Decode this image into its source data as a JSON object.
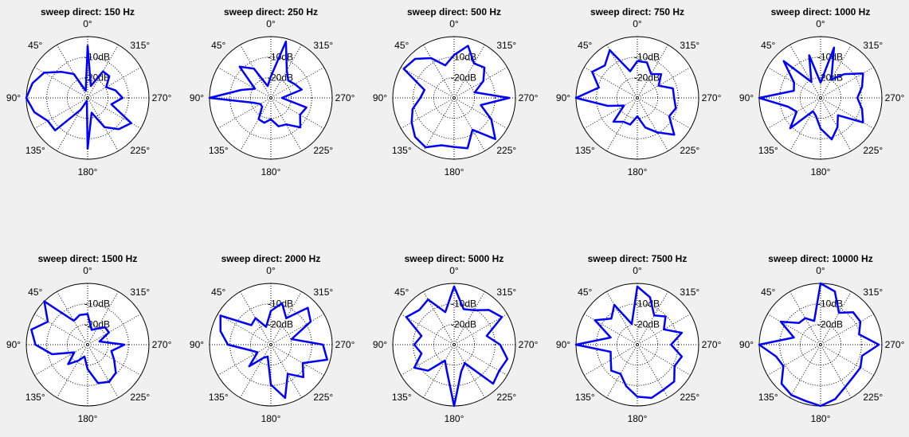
{
  "chart_data": [
    {
      "type": "polar",
      "title": "sweep direct: 150 Hz",
      "angle_ticks": [
        "0°",
        "45°",
        "90°",
        "135°",
        "180°",
        "225°",
        "270°",
        "315°"
      ],
      "ring_labels": [
        "-10dB",
        "-20dB"
      ],
      "theta_deg": [
        0,
        15,
        30,
        45,
        60,
        75,
        90,
        105,
        120,
        135,
        150,
        165,
        180,
        195,
        210,
        225,
        240,
        255,
        270,
        285,
        300,
        315,
        330,
        345
      ],
      "r": [
        0.85,
        0.12,
        0.45,
        0.6,
        0.82,
        0.93,
        1.0,
        0.9,
        0.75,
        0.75,
        0.22,
        0.05,
        0.83,
        0.25,
        0.55,
        0.72,
        0.82,
        0.4,
        0.57,
        0.47,
        0.35,
        0.5,
        0.5,
        0.2
      ]
    },
    {
      "type": "polar",
      "title": "sweep direct: 250 Hz",
      "angle_ticks": [
        "0°",
        "45°",
        "90°",
        "135°",
        "180°",
        "225°",
        "270°",
        "315°"
      ],
      "ring_labels": [
        "-10dB",
        "-20dB"
      ],
      "theta_deg": [
        0,
        15,
        30,
        45,
        60,
        75,
        90,
        105,
        120,
        135,
        150,
        165,
        180,
        195,
        210,
        225,
        240,
        255,
        270,
        285,
        300,
        315,
        330,
        345
      ],
      "r": [
        0.35,
        0.2,
        0.55,
        0.72,
        0.3,
        0.5,
        1.0,
        0.3,
        0.2,
        0.2,
        0.4,
        0.42,
        0.35,
        0.48,
        0.5,
        0.68,
        0.55,
        0.6,
        0.18,
        0.52,
        0.45,
        0.4,
        0.52,
        0.95
      ]
    },
    {
      "type": "polar",
      "title": "sweep direct: 500 Hz",
      "angle_ticks": [
        "0°",
        "45°",
        "90°",
        "135°",
        "180°",
        "225°",
        "270°",
        "315°"
      ],
      "ring_labels": [
        "-10dB",
        "-20dB"
      ],
      "theta_deg": [
        0,
        15,
        30,
        45,
        60,
        75,
        90,
        105,
        120,
        135,
        150,
        165,
        180,
        195,
        210,
        225,
        240,
        255,
        270,
        285,
        300,
        315,
        330,
        345
      ],
      "r": [
        0.7,
        0.55,
        0.75,
        0.9,
        0.95,
        0.5,
        0.55,
        0.7,
        0.8,
        0.9,
        0.93,
        0.8,
        0.8,
        0.85,
        0.6,
        0.95,
        0.7,
        0.45,
        0.9,
        0.35,
        0.55,
        0.7,
        0.65,
        0.88
      ]
    },
    {
      "type": "polar",
      "title": "sweep direct: 750 Hz",
      "angle_ticks": [
        "0°",
        "45°",
        "90°",
        "135°",
        "180°",
        "225°",
        "270°",
        "315°"
      ],
      "ring_labels": [
        "-10dB",
        "-20dB"
      ],
      "theta_deg": [
        0,
        15,
        30,
        45,
        60,
        75,
        90,
        105,
        120,
        135,
        150,
        165,
        180,
        195,
        210,
        225,
        240,
        255,
        270,
        285,
        300,
        315,
        330,
        345
      ],
      "r": [
        0.6,
        0.45,
        0.9,
        0.75,
        0.85,
        0.65,
        1.0,
        0.5,
        0.25,
        0.55,
        0.45,
        0.45,
        0.3,
        0.5,
        0.65,
        0.85,
        0.6,
        0.65,
        0.6,
        0.6,
        0.4,
        0.55,
        0.45,
        0.6
      ]
    },
    {
      "type": "polar",
      "title": "sweep direct: 1000 Hz",
      "angle_ticks": [
        "0°",
        "45°",
        "90°",
        "135°",
        "180°",
        "225°",
        "270°",
        "315°"
      ],
      "ring_labels": [
        "-10dB",
        "-20dB"
      ],
      "theta_deg": [
        0,
        15,
        30,
        45,
        60,
        75,
        90,
        105,
        120,
        135,
        150,
        165,
        180,
        195,
        210,
        225,
        240,
        255,
        270,
        285,
        300,
        315,
        330,
        345
      ],
      "r": [
        0.25,
        0.72,
        0.3,
        0.85,
        0.5,
        0.45,
        1.0,
        0.55,
        0.45,
        0.7,
        0.25,
        0.3,
        0.5,
        0.7,
        0.55,
        0.4,
        0.8,
        0.7,
        0.6,
        0.7,
        0.8,
        0.55,
        0.35,
        0.85
      ]
    },
    {
      "type": "polar",
      "title": "sweep direct: 1500 Hz",
      "angle_ticks": [
        "0°",
        "45°",
        "90°",
        "135°",
        "180°",
        "225°",
        "270°",
        "315°"
      ],
      "ring_labels": [
        "-10dB",
        "-20dB"
      ],
      "theta_deg": [
        0,
        15,
        30,
        45,
        60,
        75,
        90,
        105,
        120,
        135,
        150,
        165,
        180,
        195,
        210,
        225,
        240,
        255,
        270,
        285,
        300,
        315,
        330,
        345
      ],
      "r": [
        0.5,
        0.5,
        0.45,
        1.0,
        0.75,
        0.95,
        0.85,
        0.6,
        0.25,
        0.45,
        0.3,
        0.2,
        0.4,
        0.65,
        0.7,
        0.65,
        0.5,
        0.4,
        0.6,
        0.2,
        0.4,
        0.4,
        0.3,
        0.25
      ]
    },
    {
      "type": "polar",
      "title": "sweep direct: 2000 Hz",
      "angle_ticks": [
        "0°",
        "45°",
        "90°",
        "135°",
        "180°",
        "225°",
        "270°",
        "315°"
      ],
      "ring_labels": [
        "-10dB",
        "-20dB"
      ],
      "theta_deg": [
        0,
        15,
        30,
        45,
        60,
        75,
        90,
        105,
        120,
        135,
        150,
        165,
        180,
        195,
        210,
        225,
        240,
        255,
        270,
        285,
        300,
        315,
        330,
        345
      ],
      "r": [
        0.55,
        0.3,
        0.5,
        0.45,
        0.95,
        0.85,
        0.7,
        0.35,
        0.25,
        0.5,
        0.25,
        0.2,
        0.65,
        0.9,
        0.55,
        0.75,
        0.6,
        0.95,
        0.85,
        0.35,
        0.75,
        0.85,
        0.5,
        0.7
      ]
    },
    {
      "type": "polar",
      "title": "sweep direct: 5000 Hz",
      "angle_ticks": [
        "0°",
        "45°",
        "90°",
        "135°",
        "180°",
        "225°",
        "270°",
        "315°"
      ],
      "ring_labels": [
        "-10dB",
        "-20dB"
      ],
      "theta_deg": [
        0,
        15,
        30,
        45,
        60,
        75,
        90,
        105,
        120,
        135,
        150,
        165,
        180,
        195,
        210,
        225,
        240,
        255,
        270,
        285,
        300,
        315,
        330,
        345
      ],
      "r": [
        0.95,
        0.55,
        0.85,
        0.8,
        0.9,
        0.55,
        0.65,
        0.55,
        0.75,
        0.6,
        0.3,
        0.45,
        1.0,
        0.45,
        0.35,
        0.9,
        0.85,
        0.9,
        0.75,
        0.55,
        0.9,
        0.8,
        0.65,
        0.6
      ]
    },
    {
      "type": "polar",
      "title": "sweep direct: 7500 Hz",
      "angle_ticks": [
        "0°",
        "45°",
        "90°",
        "135°",
        "180°",
        "225°",
        "270°",
        "315°"
      ],
      "ring_labels": [
        "-10dB",
        "-20dB"
      ],
      "theta_deg": [
        0,
        15,
        30,
        45,
        60,
        75,
        90,
        105,
        120,
        135,
        150,
        165,
        180,
        195,
        210,
        225,
        240,
        255,
        270,
        285,
        300,
        315,
        330,
        345
      ],
      "r": [
        0.95,
        0.35,
        0.75,
        0.6,
        0.8,
        0.45,
        1.0,
        0.45,
        0.5,
        0.6,
        0.55,
        0.7,
        0.85,
        0.9,
        0.85,
        0.85,
        0.7,
        0.75,
        0.55,
        0.75,
        0.5,
        0.65,
        0.55,
        0.8
      ]
    },
    {
      "type": "polar",
      "title": "sweep direct: 10000 Hz",
      "angle_ticks": [
        "0°",
        "45°",
        "90°",
        "135°",
        "180°",
        "225°",
        "270°",
        "315°"
      ],
      "ring_labels": [
        "-10dB",
        "-20dB"
      ],
      "theta_deg": [
        0,
        15,
        30,
        45,
        60,
        75,
        90,
        105,
        120,
        135,
        150,
        165,
        180,
        195,
        210,
        225,
        240,
        255,
        270,
        285,
        300,
        315,
        330,
        345
      ],
      "r": [
        1.0,
        0.4,
        0.5,
        0.5,
        0.75,
        0.45,
        1.0,
        0.75,
        0.7,
        0.9,
        0.95,
        0.95,
        1.0,
        0.92,
        0.8,
        0.75,
        0.75,
        0.7,
        0.95,
        0.65,
        0.75,
        0.75,
        0.6,
        0.9
      ]
    }
  ]
}
